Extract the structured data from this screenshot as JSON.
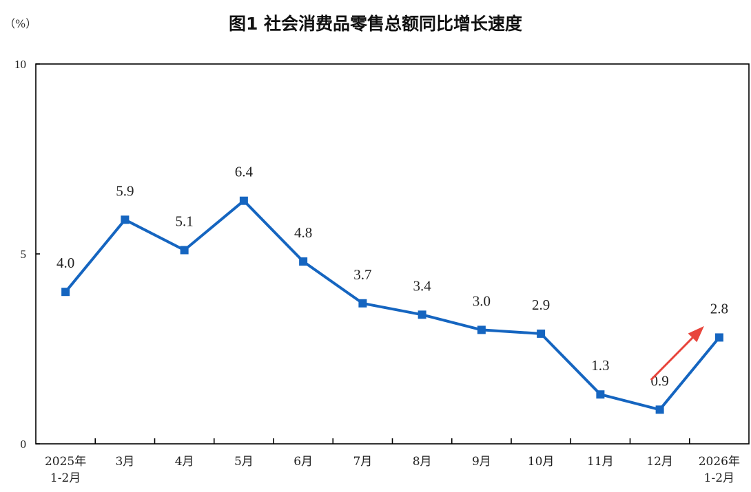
{
  "chart_data": {
    "type": "line",
    "title": "图1  社会消费品零售总额同比增长速度",
    "unit_label": "（%）",
    "xlabel": "",
    "ylabel": "（%）",
    "ylim": [
      0,
      10
    ],
    "yticks": [
      0,
      5,
      10
    ],
    "grid": false,
    "categories": [
      [
        "2025年",
        "1-2月"
      ],
      [
        "3月"
      ],
      [
        "4月"
      ],
      [
        "5月"
      ],
      [
        "6月"
      ],
      [
        "7月"
      ],
      [
        "8月"
      ],
      [
        "9月"
      ],
      [
        "10月"
      ],
      [
        "11月"
      ],
      [
        "12月"
      ],
      [
        "2026年",
        "1-2月"
      ]
    ],
    "series": [
      {
        "name": "社会消费品零售总额同比增长速度",
        "color": "#1565c0",
        "values": [
          4.0,
          5.9,
          5.1,
          6.4,
          4.8,
          3.7,
          3.4,
          3.0,
          2.9,
          1.3,
          0.9,
          2.8
        ],
        "labels": [
          "4.0",
          "5.9",
          "5.1",
          "6.4",
          "4.8",
          "3.7",
          "3.4",
          "3.0",
          "2.9",
          "1.3",
          "0.9",
          "2.8"
        ]
      }
    ],
    "annotations": [
      {
        "type": "arrow",
        "from_value": 1.7,
        "to_value": 3.1,
        "from_category_index": 10,
        "to_category_index": 11,
        "color": "#e8453c"
      }
    ]
  }
}
